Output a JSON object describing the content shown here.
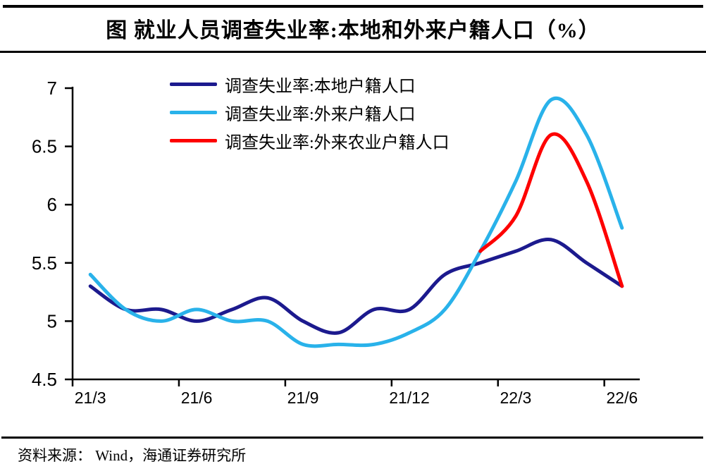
{
  "title": "图  就业人员调查失业率:本地和外来户籍人口（%）",
  "source": "资料来源： Wind，海通证券研究所",
  "colors": {
    "local_hukou": "#1c1a8e",
    "migrant_hukou": "#29b2ea",
    "migrant_agri_hukou": "#fe0000",
    "axis": "#000000"
  },
  "legend": {
    "items": [
      {
        "key": "local_hukou",
        "label": "调查失业率:本地户籍人口",
        "color": "#1c1a8e"
      },
      {
        "key": "migrant_hukou",
        "label": "调查失业率:外来户籍人口",
        "color": "#29b2ea"
      },
      {
        "key": "migrant_agri_hukou",
        "label": "调查失业率:外来农业户籍人口",
        "color": "#fe0000"
      }
    ]
  },
  "chart_data": {
    "type": "line",
    "smooth": true,
    "grid": false,
    "legend_position": "top-left-inside",
    "x": [
      "21/3",
      "21/4",
      "21/5",
      "21/6",
      "21/7",
      "21/8",
      "21/9",
      "21/10",
      "21/11",
      "21/12",
      "22/1",
      "22/2",
      "22/3",
      "22/4",
      "22/5",
      "22/6"
    ],
    "xtick_every": 3,
    "xtick_labels": [
      "21/3",
      "21/6",
      "21/9",
      "21/12",
      "22/3",
      "22/6"
    ],
    "ylim": [
      4.5,
      7
    ],
    "ytick_step": 0.5,
    "ytick_labels": [
      "4.5",
      "5",
      "5.5",
      "6",
      "6.5",
      "7"
    ],
    "series": [
      {
        "name": "调查失业率:本地户籍人口",
        "color": "#1c1a8e",
        "values": [
          5.3,
          5.1,
          5.1,
          5.0,
          5.1,
          5.2,
          5.0,
          4.9,
          5.1,
          5.1,
          5.4,
          5.5,
          5.6,
          5.7,
          5.5,
          5.3
        ]
      },
      {
        "name": "调查失业率:外来户籍人口",
        "color": "#29b2ea",
        "values": [
          5.4,
          5.1,
          5.0,
          5.1,
          5.0,
          5.0,
          4.8,
          4.8,
          4.8,
          4.9,
          5.1,
          5.6,
          6.2,
          6.9,
          6.6,
          5.8
        ]
      },
      {
        "name": "调查失业率:外来农业户籍人口",
        "color": "#fe0000",
        "values": [
          null,
          null,
          null,
          null,
          null,
          null,
          null,
          null,
          null,
          null,
          null,
          5.6,
          5.9,
          6.6,
          6.2,
          5.3
        ]
      }
    ]
  }
}
